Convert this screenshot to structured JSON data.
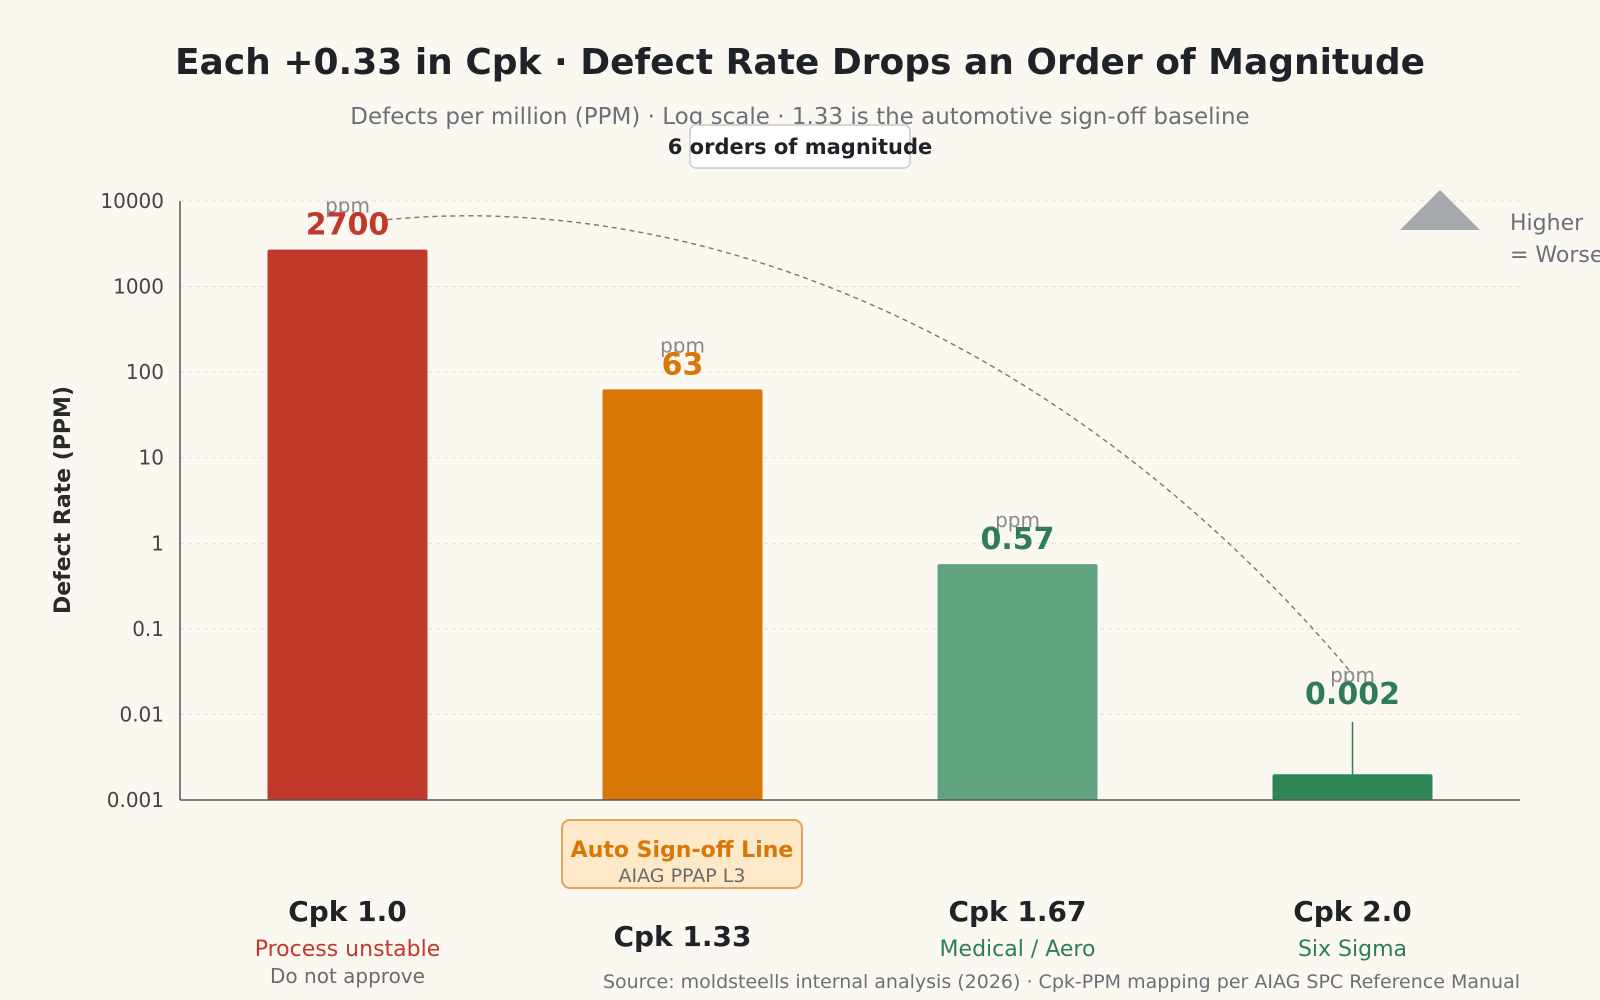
{
  "chart_data": {
    "type": "bar",
    "title": "Each +0.33 in Cpk · Defect Rate Drops an Order of Magnitude",
    "subtitle": "Defects per million (PPM) · Log scale · 1.33 is the automotive sign-off baseline",
    "ylabel": "Defect Rate (PPM)",
    "yscale": "log",
    "ylim": [
      0.001,
      10000
    ],
    "yticks": [
      "10000",
      "1000",
      "100",
      "10",
      "1",
      "0.1",
      "0.01",
      "0.001"
    ],
    "grid": true,
    "categories": [
      "Cpk 1.0",
      "Cpk 1.33",
      "Cpk 1.67",
      "Cpk 2.0"
    ],
    "values": [
      2700,
      63,
      0.57,
      0.002
    ],
    "value_labels": [
      "2700",
      "63",
      "0.57",
      "0.002"
    ],
    "unit": "ppm",
    "category_notes": [
      {
        "status": "Process unstable",
        "note": "Do not approve"
      },
      {
        "status": "",
        "note": ""
      },
      {
        "status": "Medical / Aero",
        "note": ""
      },
      {
        "status": "Six Sigma",
        "note": ""
      }
    ],
    "colors": [
      "#c0392b",
      "#d97706",
      "#5fa37f",
      "#2e8657"
    ],
    "label_colors": [
      "#c0392b",
      "#d97706",
      "#2e7d57",
      "#2e7d57"
    ],
    "annotation_badge": "6 orders of magnitude",
    "legend": [
      "Higher",
      "= Worse"
    ],
    "signoff_box": {
      "title": "Auto Sign-off Line",
      "subtitle": "AIAG PPAP L3"
    },
    "source": "Source: moldsteells internal analysis (2026) · Cpk-PPM mapping per AIAG SPC Reference Manual"
  }
}
